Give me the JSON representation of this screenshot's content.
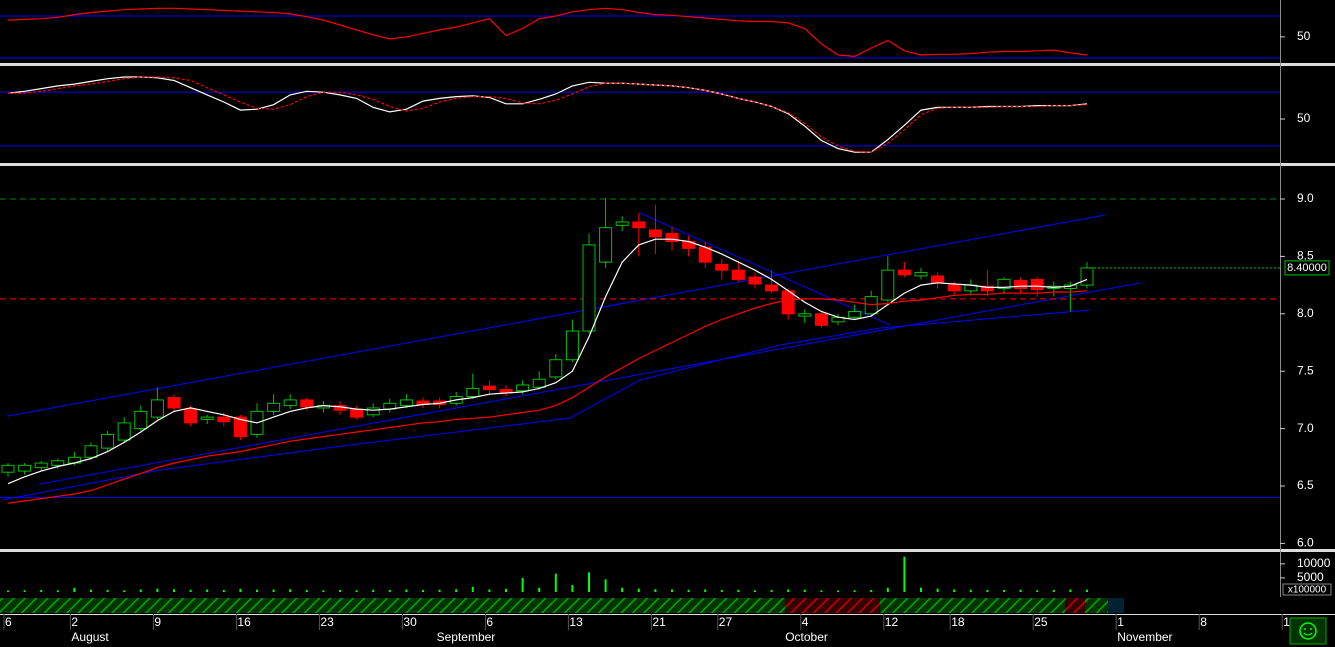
{
  "chart_data": [
    {
      "type": "line",
      "ylim": [
        14,
        100
      ],
      "yticks": [
        50
      ],
      "hlines": [
        {
          "value": 80,
          "color": "#0000ff"
        },
        {
          "value": 20,
          "color": "#0000ff"
        }
      ],
      "series": [
        {
          "color": "#ff0000",
          "values": [
            74,
            75,
            76,
            78,
            82,
            85,
            87,
            89,
            90,
            91,
            91,
            90,
            89,
            88,
            87,
            86,
            85,
            83,
            79,
            74,
            67,
            60,
            53,
            47,
            50,
            55,
            60,
            64,
            70,
            76,
            52,
            62,
            76,
            80,
            86,
            89,
            91,
            89,
            85,
            82,
            81,
            79,
            77,
            75,
            73,
            72,
            72,
            70,
            62,
            40,
            24,
            22,
            34,
            45,
            30,
            24,
            25,
            25,
            26,
            28,
            29,
            29,
            30,
            31,
            27,
            24,
            null,
            null,
            null,
            null,
            null,
            null,
            null,
            null,
            null,
            null,
            null,
            null
          ]
        }
      ]
    },
    {
      "type": "line",
      "ylim": [
        2,
        107
      ],
      "yticks": [
        50
      ],
      "hlines": [
        {
          "value": 80,
          "color": "#0000ff"
        },
        {
          "value": 20,
          "color": "#0000ff"
        }
      ],
      "series": [
        {
          "color": "#ffffff",
          "values": [
            79,
            81,
            84,
            87,
            89,
            92,
            95,
            97,
            97,
            96,
            93,
            85,
            77,
            69,
            60,
            61,
            66,
            77,
            81,
            80,
            77,
            73,
            63,
            58,
            61,
            70,
            73,
            75,
            76,
            74,
            67,
            67,
            72,
            78,
            87,
            91,
            90,
            90,
            89,
            88,
            87,
            85,
            82,
            78,
            73,
            69,
            64,
            56,
            42,
            26,
            17,
            13,
            13,
            27,
            43,
            60,
            63,
            63,
            63,
            64,
            64,
            64,
            65,
            65,
            65,
            67,
            null,
            null,
            null,
            null,
            null,
            null,
            null,
            null,
            null,
            null,
            null,
            null
          ]
        },
        {
          "color": "#ff0000",
          "dash": true,
          "values": [
            79,
            79,
            81,
            84,
            87,
            89,
            92,
            95,
            97,
            97,
            96,
            93,
            85,
            77,
            69,
            62,
            61,
            66,
            75,
            80,
            80,
            77,
            72,
            64,
            59,
            62,
            69,
            73,
            75,
            75,
            73,
            68,
            67,
            71,
            78,
            86,
            90,
            90,
            89,
            88,
            87,
            85,
            82,
            78,
            73,
            69,
            64,
            57,
            45,
            30,
            20,
            14,
            13,
            23,
            38,
            55,
            62,
            63,
            63,
            63,
            64,
            64,
            64,
            65,
            65,
            66,
            null,
            null,
            null,
            null,
            null,
            null,
            null,
            null,
            null,
            null,
            null,
            null
          ]
        }
      ]
    },
    {
      "type": "candlestick",
      "ylim": [
        5.96,
        9.27
      ],
      "yticks": [
        {
          "value": 9,
          "label": "9.0"
        },
        {
          "value": 8.5,
          "label": "8.5"
        },
        {
          "value": 8,
          "label": "8.0"
        },
        {
          "value": 7.5,
          "label": "7.5"
        },
        {
          "value": 7,
          "label": "7.0"
        },
        {
          "value": 6.5,
          "label": "6.5"
        },
        {
          "value": 6,
          "label": "6.0"
        }
      ],
      "up_color": "#00c000",
      "down_color": "#ff0000",
      "open": [
        6.62,
        6.63,
        6.66,
        6.68,
        6.7,
        6.75,
        6.83,
        6.9,
        7.0,
        7.1,
        7.27,
        7.17,
        7.08,
        7.1,
        7.1,
        6.95,
        7.15,
        7.2,
        7.25,
        7.18,
        7.2,
        7.17,
        7.12,
        7.17,
        7.2,
        7.24,
        7.24,
        7.22,
        7.28,
        7.37,
        7.34,
        7.33,
        7.36,
        7.45,
        7.6,
        7.85,
        8.45,
        8.77,
        8.8,
        8.73,
        8.7,
        8.63,
        8.58,
        8.43,
        8.38,
        8.32,
        8.25,
        8.2,
        7.98,
        8.0,
        7.93,
        7.97,
        8.0,
        8.12,
        8.38,
        8.33,
        8.33,
        8.25,
        8.2,
        8.24,
        8.22,
        8.29,
        8.3,
        8.22,
        8.22,
        8.25,
        null,
        null,
        null,
        null,
        null,
        null,
        null,
        null,
        null,
        null,
        null,
        null
      ],
      "high": [
        6.7,
        6.7,
        6.72,
        6.74,
        6.8,
        6.88,
        6.98,
        7.1,
        7.2,
        7.36,
        7.3,
        7.2,
        7.12,
        7.14,
        7.12,
        7.22,
        7.3,
        7.3,
        7.27,
        7.24,
        7.24,
        7.2,
        7.22,
        7.26,
        7.3,
        7.27,
        7.27,
        7.32,
        7.48,
        7.42,
        7.38,
        7.42,
        7.5,
        7.65,
        7.95,
        8.7,
        9.01,
        8.85,
        8.88,
        8.95,
        8.76,
        8.68,
        8.63,
        8.48,
        8.45,
        8.36,
        8.38,
        8.22,
        8.04,
        8.03,
        8.0,
        8.08,
        8.2,
        8.5,
        8.45,
        8.4,
        8.36,
        8.28,
        8.3,
        8.38,
        8.32,
        8.32,
        8.32,
        8.28,
        8.28,
        8.45,
        null,
        null,
        null,
        null,
        null,
        null,
        null,
        null,
        null,
        null,
        null,
        null
      ],
      "low": [
        6.58,
        6.6,
        6.63,
        6.65,
        6.68,
        6.73,
        6.8,
        6.88,
        6.98,
        7.08,
        7.15,
        7.02,
        7.04,
        7.02,
        6.9,
        6.92,
        7.12,
        7.17,
        7.16,
        7.14,
        7.12,
        7.08,
        7.1,
        7.14,
        7.18,
        7.18,
        7.18,
        7.2,
        7.26,
        7.3,
        7.28,
        7.3,
        7.34,
        7.43,
        7.58,
        7.83,
        8.4,
        8.72,
        8.5,
        8.52,
        8.55,
        8.5,
        8.4,
        8.3,
        8.28,
        8.22,
        8.18,
        7.95,
        7.92,
        7.88,
        7.9,
        7.95,
        7.98,
        8.1,
        8.32,
        8.3,
        8.22,
        8.16,
        8.16,
        8.15,
        8.18,
        8.18,
        8.15,
        8.15,
        8.02,
        8.22,
        null,
        null,
        null,
        null,
        null,
        null,
        null,
        null,
        null,
        null,
        null,
        null
      ],
      "close": [
        6.68,
        6.68,
        6.7,
        6.72,
        6.75,
        6.85,
        6.95,
        7.05,
        7.15,
        7.25,
        7.18,
        7.05,
        7.1,
        7.06,
        6.93,
        7.15,
        7.22,
        7.25,
        7.19,
        7.2,
        7.16,
        7.1,
        7.18,
        7.22,
        7.25,
        7.21,
        7.21,
        7.28,
        7.35,
        7.34,
        7.31,
        7.38,
        7.43,
        7.6,
        7.85,
        8.6,
        8.75,
        8.8,
        8.75,
        8.67,
        8.63,
        8.57,
        8.45,
        8.38,
        8.3,
        8.26,
        8.2,
        8.0,
        8.0,
        7.9,
        7.97,
        8.02,
        8.15,
        8.38,
        8.34,
        8.36,
        8.27,
        8.2,
        8.25,
        8.2,
        8.3,
        8.22,
        8.21,
        8.24,
        8.25,
        8.4,
        null,
        null,
        null,
        null,
        null,
        null,
        null,
        null,
        null,
        null,
        null,
        null
      ],
      "series": [
        {
          "color": "#ffffff",
          "values": [
            6.52,
            6.58,
            6.63,
            6.67,
            6.7,
            6.74,
            6.8,
            6.88,
            6.97,
            7.07,
            7.15,
            7.18,
            7.15,
            7.12,
            7.08,
            7.05,
            7.1,
            7.15,
            7.18,
            7.2,
            7.19,
            7.17,
            7.16,
            7.17,
            7.19,
            7.21,
            7.22,
            7.25,
            7.27,
            7.3,
            7.31,
            7.32,
            7.35,
            7.4,
            7.5,
            7.8,
            8.15,
            8.45,
            8.6,
            8.65,
            8.65,
            8.63,
            8.58,
            8.52,
            8.45,
            8.38,
            8.3,
            8.2,
            8.1,
            8.02,
            7.97,
            7.95,
            7.98,
            8.08,
            8.18,
            8.25,
            8.27,
            8.26,
            8.25,
            8.23,
            8.23,
            8.24,
            8.24,
            8.23,
            8.24,
            8.3,
            null,
            null,
            null,
            null,
            null,
            null,
            null,
            null,
            null,
            null,
            null,
            null
          ]
        },
        {
          "color": "#ff0000",
          "values": [
            6.35,
            6.37,
            6.39,
            6.41,
            6.43,
            6.46,
            6.51,
            6.56,
            6.61,
            6.66,
            6.7,
            6.73,
            6.76,
            6.78,
            6.8,
            6.83,
            6.86,
            6.89,
            6.91,
            6.93,
            6.95,
            6.97,
            6.99,
            7.01,
            7.03,
            7.05,
            7.06,
            7.08,
            7.09,
            7.1,
            7.12,
            7.14,
            7.16,
            7.2,
            7.27,
            7.36,
            7.45,
            7.53,
            7.61,
            7.68,
            7.75,
            7.82,
            7.89,
            7.95,
            8.0,
            8.05,
            8.09,
            8.12,
            8.13,
            8.13,
            8.12,
            8.1,
            8.08,
            8.09,
            8.11,
            8.12,
            8.14,
            8.16,
            8.17,
            8.17,
            8.18,
            8.18,
            8.18,
            8.19,
            8.19,
            8.2,
            null,
            null,
            null,
            null,
            null,
            null,
            null,
            null,
            null,
            null,
            null,
            null
          ]
        }
      ],
      "hlines": [
        {
          "value": 9,
          "color": "#008000",
          "dash": true
        },
        {
          "value": 8.13,
          "color": "#ff0000",
          "dash": true
        },
        {
          "value": 6.4,
          "color": "#0000ff"
        }
      ],
      "last_price": {
        "value": 8.4,
        "label": "8.40000",
        "color": "#00c000"
      }
    },
    {
      "type": "bar",
      "ylim": [
        0,
        13500
      ],
      "yticks": [
        10000,
        5000
      ],
      "unit_label": "x100000",
      "color": "#00ff00",
      "values": [
        500,
        600,
        700,
        600,
        1500,
        800,
        700,
        600,
        900,
        1200,
        1000,
        800,
        900,
        700,
        1100,
        800,
        900,
        1000,
        700,
        600,
        700,
        600,
        800,
        700,
        900,
        700,
        800,
        1000,
        1800,
        900,
        1100,
        5000,
        1500,
        6500,
        2500,
        7000,
        4500,
        1500,
        1200,
        1000,
        900,
        800,
        900,
        700,
        800,
        600,
        700,
        900,
        800,
        600,
        500,
        600,
        700,
        1500,
        12500,
        1500,
        1200,
        900,
        800,
        700,
        700,
        800,
        600,
        700,
        900,
        800,
        null,
        null,
        null,
        null,
        null,
        null,
        null,
        null,
        null,
        null,
        null,
        null
      ],
      "categories": [
        "6",
        null,
        null,
        null,
        "2",
        null,
        null,
        null,
        null,
        "9",
        null,
        null,
        null,
        null,
        "16",
        null,
        null,
        null,
        null,
        "23",
        null,
        null,
        null,
        null,
        "30",
        null,
        null,
        null,
        null,
        "6",
        null,
        null,
        null,
        null,
        "13",
        null,
        null,
        null,
        null,
        "21",
        null,
        null,
        null,
        "27",
        null,
        null,
        null,
        null,
        "4",
        null,
        null,
        null,
        null,
        "12",
        null,
        null,
        null,
        "18",
        null,
        null,
        null,
        null,
        "25",
        null,
        null,
        null,
        null,
        "1",
        null,
        null,
        null,
        null,
        "8",
        null,
        null,
        null,
        null,
        "1"
      ],
      "month_labels": [
        null,
        null,
        null,
        null,
        "August",
        null,
        null,
        null,
        null,
        null,
        null,
        null,
        null,
        null,
        null,
        null,
        null,
        null,
        null,
        null,
        null,
        null,
        null,
        null,
        null,
        null,
        "September",
        null,
        null,
        null,
        null,
        null,
        null,
        null,
        null,
        null,
        null,
        null,
        null,
        null,
        null,
        null,
        null,
        null,
        null,
        null,
        null,
        "October",
        null,
        null,
        null,
        null,
        null,
        null,
        null,
        null,
        null,
        null,
        null,
        null,
        null,
        null,
        null,
        null,
        null,
        null,
        null,
        "November",
        null,
        null,
        null,
        null,
        null,
        null,
        null,
        null,
        null,
        null
      ]
    }
  ]
}
